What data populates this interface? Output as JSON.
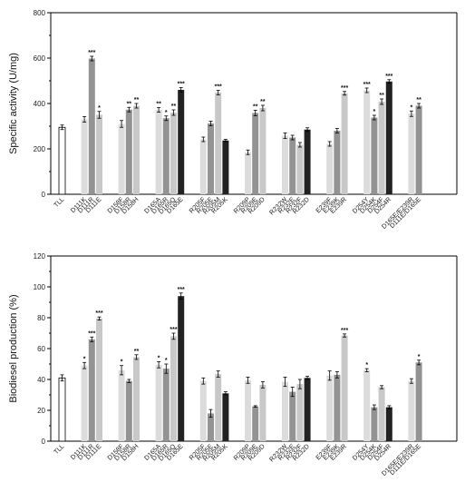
{
  "colors": {
    "l0": "#ffffff",
    "l1": "#dcdcdc",
    "l2": "#939393",
    "l3": "#c8c8c8",
    "l4": "#222222",
    "axis": "#000000"
  },
  "chart_data": [
    {
      "type": "bar",
      "ylabel": "Specific activity (U/mg)",
      "ylim": [
        0,
        800
      ],
      "yticks": [
        0,
        200,
        400,
        600,
        800
      ],
      "groups": [
        {
          "bars": [
            {
              "label": "TLL",
              "value": 295,
              "err": 10,
              "shade": "l0",
              "sig": ""
            }
          ]
        },
        {
          "bars": [
            {
              "label": "D111K",
              "value": 330,
              "err": 12,
              "shade": "l1",
              "sig": ""
            },
            {
              "label": "D111R",
              "value": 598,
              "err": 10,
              "shade": "l2",
              "sig": "***"
            },
            {
              "label": "D111E",
              "value": 350,
              "err": 15,
              "shade": "l3",
              "sig": "*"
            }
          ]
        },
        {
          "bars": [
            {
              "label": "D158F",
              "value": 310,
              "err": 15,
              "shade": "l1",
              "sig": ""
            },
            {
              "label": "D158R",
              "value": 373,
              "err": 10,
              "shade": "l2",
              "sig": "**"
            },
            {
              "label": "D158H",
              "value": 390,
              "err": 10,
              "shade": "l3",
              "sig": "**"
            }
          ]
        },
        {
          "bars": [
            {
              "label": "D165A",
              "value": 372,
              "err": 10,
              "shade": "l1",
              "sig": "**"
            },
            {
              "label": "D165R",
              "value": 335,
              "err": 10,
              "shade": "l2",
              "sig": "*"
            },
            {
              "label": "D165Q",
              "value": 360,
              "err": 12,
              "shade": "l3",
              "sig": "**"
            },
            {
              "label": "D165E",
              "value": 460,
              "err": 10,
              "shade": "l4",
              "sig": "***"
            }
          ]
        },
        {
          "bars": [
            {
              "label": "R205F",
              "value": 242,
              "err": 10,
              "shade": "l1",
              "sig": ""
            },
            {
              "label": "R205E",
              "value": 312,
              "err": 10,
              "shade": "l2",
              "sig": ""
            },
            {
              "label": "R205M",
              "value": 448,
              "err": 10,
              "shade": "l3",
              "sig": "***"
            },
            {
              "label": "R205K",
              "value": 237,
              "err": 5,
              "shade": "l4",
              "sig": ""
            }
          ]
        },
        {
          "bars": [
            {
              "label": "R209P",
              "value": 185,
              "err": 10,
              "shade": "l1",
              "sig": ""
            },
            {
              "label": "R209E",
              "value": 358,
              "err": 12,
              "shade": "l2",
              "sig": "**"
            },
            {
              "label": "R209D",
              "value": 380,
              "err": 12,
              "shade": "l3",
              "sig": "**"
            }
          ]
        },
        {
          "bars": [
            {
              "label": "R232W",
              "value": 258,
              "err": 12,
              "shade": "l1",
              "sig": ""
            },
            {
              "label": "R232E",
              "value": 250,
              "err": 10,
              "shade": "l2",
              "sig": ""
            },
            {
              "label": "R232F",
              "value": 218,
              "err": 10,
              "shade": "l3",
              "sig": ""
            },
            {
              "label": "R232D",
              "value": 285,
              "err": 8,
              "shade": "l4",
              "sig": ""
            }
          ]
        },
        {
          "bars": [
            {
              "label": "E239F",
              "value": 222,
              "err": 10,
              "shade": "l1",
              "sig": ""
            },
            {
              "label": "E239K",
              "value": 280,
              "err": 10,
              "shade": "l2",
              "sig": ""
            },
            {
              "label": "E239R",
              "value": 445,
              "err": 8,
              "shade": "l3",
              "sig": "***"
            }
          ]
        },
        {
          "bars": [
            {
              "label": "D254Y",
              "value": 458,
              "err": 10,
              "shade": "l1",
              "sig": "***"
            },
            {
              "label": "D254K",
              "value": 338,
              "err": 10,
              "shade": "l2",
              "sig": "*"
            },
            {
              "label": "D254F",
              "value": 408,
              "err": 12,
              "shade": "l3",
              "sig": "**"
            },
            {
              "label": "D254R",
              "value": 497,
              "err": 8,
              "shade": "l4",
              "sig": "***"
            }
          ]
        },
        {
          "bars": [
            {
              "label": "D165E/E239R",
              "value": 355,
              "err": 12,
              "shade": "l1",
              "sig": "*"
            },
            {
              "label": "D111E/D165E",
              "value": 390,
              "err": 10,
              "shade": "l2",
              "sig": "**"
            }
          ]
        }
      ]
    },
    {
      "type": "bar",
      "ylabel": "Biodiesel production (%)",
      "ylim": [
        0,
        120
      ],
      "yticks": [
        0,
        20,
        40,
        60,
        80,
        100,
        120
      ],
      "groups": [
        {
          "bars": [
            {
              "label": "TLL",
              "value": 41,
              "err": 2,
              "shade": "l0",
              "sig": ""
            }
          ]
        },
        {
          "bars": [
            {
              "label": "D111K",
              "value": 49,
              "err": 2,
              "shade": "l1",
              "sig": "*"
            },
            {
              "label": "D111R",
              "value": 66,
              "err": 1.5,
              "shade": "l2",
              "sig": "***"
            },
            {
              "label": "D111E",
              "value": 79.5,
              "err": 1,
              "shade": "l3",
              "sig": "***"
            }
          ]
        },
        {
          "bars": [
            {
              "label": "D158F",
              "value": 46,
              "err": 3,
              "shade": "l1",
              "sig": "*"
            },
            {
              "label": "D158R",
              "value": 39,
              "err": 1,
              "shade": "l2",
              "sig": ""
            },
            {
              "label": "D158H",
              "value": 54.5,
              "err": 1.5,
              "shade": "l3",
              "sig": "**"
            }
          ]
        },
        {
          "bars": [
            {
              "label": "D165A",
              "value": 49.5,
              "err": 2,
              "shade": "l1",
              "sig": "*"
            },
            {
              "label": "D165R",
              "value": 47,
              "err": 3,
              "shade": "l2",
              "sig": "*"
            },
            {
              "label": "D165Q",
              "value": 68,
              "err": 2,
              "shade": "l3",
              "sig": "***"
            },
            {
              "label": "D165E",
              "value": 94,
              "err": 2,
              "shade": "l4",
              "sig": "***"
            }
          ]
        },
        {
          "bars": [
            {
              "label": "R205F",
              "value": 39,
              "err": 2,
              "shade": "l1",
              "sig": ""
            },
            {
              "label": "R205E",
              "value": 18,
              "err": 2.5,
              "shade": "l2",
              "sig": ""
            },
            {
              "label": "R205M",
              "value": 43.5,
              "err": 2,
              "shade": "l3",
              "sig": ""
            },
            {
              "label": "R205K",
              "value": 31,
              "err": 1,
              "shade": "l4",
              "sig": ""
            }
          ]
        },
        {
          "bars": [
            {
              "label": "R209P",
              "value": 39.5,
              "err": 2,
              "shade": "l1",
              "sig": ""
            },
            {
              "label": "R209E",
              "value": 22.5,
              "err": 0.5,
              "shade": "l2",
              "sig": ""
            },
            {
              "label": "R209D",
              "value": 36.5,
              "err": 2,
              "shade": "l3",
              "sig": ""
            }
          ]
        },
        {
          "bars": [
            {
              "label": "R232W",
              "value": 38.5,
              "err": 3,
              "shade": "l1",
              "sig": ""
            },
            {
              "label": "R232E",
              "value": 32,
              "err": 3,
              "shade": "l2",
              "sig": ""
            },
            {
              "label": "R232F",
              "value": 37,
              "err": 3,
              "shade": "l3",
              "sig": ""
            },
            {
              "label": "R232D",
              "value": 41,
              "err": 1,
              "shade": "l4",
              "sig": ""
            }
          ]
        },
        {
          "bars": [
            {
              "label": "E239F",
              "value": 42.5,
              "err": 3,
              "shade": "l1",
              "sig": ""
            },
            {
              "label": "E239K",
              "value": 43,
              "err": 2,
              "shade": "l2",
              "sig": ""
            },
            {
              "label": "E239R",
              "value": 68.5,
              "err": 1,
              "shade": "l3",
              "sig": "***"
            }
          ]
        },
        {
          "bars": [
            {
              "label": "D254Y",
              "value": 46,
              "err": 1,
              "shade": "l1",
              "sig": "*"
            },
            {
              "label": "D254K",
              "value": 22,
              "err": 1.5,
              "shade": "l2",
              "sig": ""
            },
            {
              "label": "D254F",
              "value": 35,
              "err": 1,
              "shade": "l3",
              "sig": ""
            },
            {
              "label": "D254R",
              "value": 22,
              "err": 1,
              "shade": "l4",
              "sig": ""
            }
          ]
        },
        {
          "bars": [
            {
              "label": "D165E/E239R",
              "value": 39,
              "err": 1.5,
              "shade": "l1",
              "sig": ""
            },
            {
              "label": "D111E/D165E",
              "value": 51,
              "err": 1.5,
              "shade": "l2",
              "sig": "*"
            }
          ]
        }
      ]
    }
  ]
}
